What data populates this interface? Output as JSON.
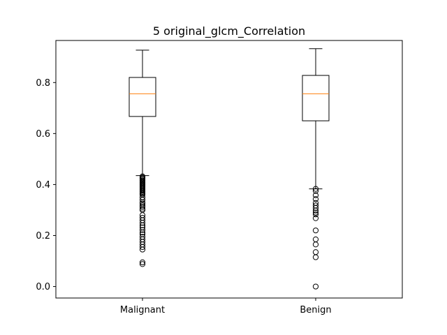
{
  "chart_data": {
    "type": "box",
    "title": "5 original_glcm_Correlation",
    "xlabel": "",
    "ylabel": "",
    "ylim": [
      -0.045,
      0.965
    ],
    "yticks": [
      0.0,
      0.2,
      0.4,
      0.6,
      0.8
    ],
    "ytick_labels": [
      "0.0",
      "0.2",
      "0.4",
      "0.6",
      "0.8"
    ],
    "categories": [
      "Malignant",
      "Benign"
    ],
    "grid": false,
    "colors": {
      "box": "#000000",
      "median": "#ff7f0e",
      "flier": "#000000"
    },
    "boxes": [
      {
        "category": "Malignant",
        "whisker_low": 0.435,
        "q1": 0.667,
        "median": 0.756,
        "q3": 0.82,
        "whisker_high": 0.927,
        "fliers": [
          0.432,
          0.428,
          0.424,
          0.42,
          0.416,
          0.412,
          0.408,
          0.404,
          0.4,
          0.396,
          0.392,
          0.388,
          0.384,
          0.38,
          0.376,
          0.372,
          0.368,
          0.364,
          0.36,
          0.35,
          0.34,
          0.33,
          0.325,
          0.318,
          0.312,
          0.305,
          0.3,
          0.28,
          0.27,
          0.26,
          0.25,
          0.24,
          0.232,
          0.222,
          0.212,
          0.205,
          0.195,
          0.185,
          0.175,
          0.165,
          0.155,
          0.145,
          0.095,
          0.088
        ]
      },
      {
        "category": "Benign",
        "whisker_low": 0.383,
        "q1": 0.65,
        "median": 0.756,
        "q3": 0.828,
        "whisker_high": 0.933,
        "fliers": [
          0.383,
          0.375,
          0.358,
          0.343,
          0.328,
          0.318,
          0.308,
          0.298,
          0.29,
          0.283,
          0.268,
          0.22,
          0.185,
          0.165,
          0.135,
          0.115,
          0.0
        ]
      }
    ]
  }
}
